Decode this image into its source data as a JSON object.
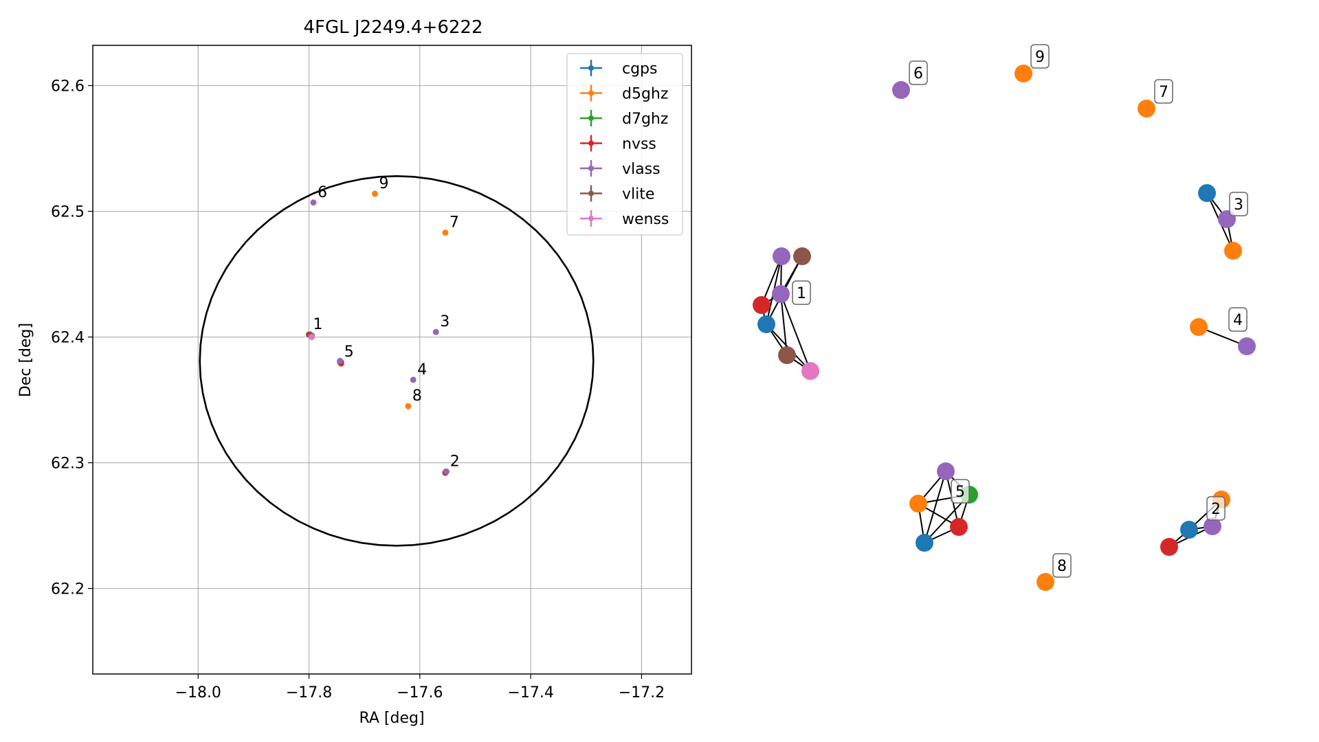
{
  "chart_data": [
    {
      "type": "scatter",
      "title": "4FGL J2249.4+6222",
      "xlabel": "RA [deg]",
      "ylabel": "Dec [deg]",
      "xlim": [
        -18.19,
        -17.11
      ],
      "ylim": [
        62.132,
        62.632
      ],
      "xticks": [
        -18.0,
        -17.8,
        -17.6,
        -17.4,
        -17.2
      ],
      "xtick_labels": [
        "−18.0",
        "−17.8",
        "−17.6",
        "−17.4",
        "−17.2"
      ],
      "yticks": [
        62.2,
        62.3,
        62.4,
        62.5,
        62.6
      ],
      "ytick_labels": [
        "62.2",
        "62.3",
        "62.4",
        "62.5",
        "62.6"
      ],
      "grid": true,
      "legend_position": "top-right",
      "series": [
        {
          "name": "cgps",
          "color": "#1f77b4",
          "points": [
            [
              -17.795,
              62.401
            ],
            [
              -17.744,
              62.38
            ],
            [
              -17.553,
              62.293
            ]
          ]
        },
        {
          "name": "d5ghz",
          "color": "#ff7f0e",
          "points": [
            [
              -17.681,
              62.514
            ],
            [
              -17.554,
              62.483
            ],
            [
              -17.621,
              62.345
            ],
            [
              -17.743,
              62.38
            ]
          ]
        },
        {
          "name": "d7ghz",
          "color": "#2ca02c",
          "points": [
            [
              -17.742,
              62.38
            ]
          ]
        },
        {
          "name": "nvss",
          "color": "#d62728",
          "points": [
            [
              -17.8,
              62.402
            ],
            [
              -17.742,
              62.379
            ],
            [
              -17.554,
              62.292
            ]
          ]
        },
        {
          "name": "vlass",
          "color": "#9467bd",
          "points": [
            [
              -17.792,
              62.507
            ],
            [
              -17.571,
              62.404
            ],
            [
              -17.612,
              62.366
            ],
            [
              -17.744,
              62.381
            ],
            [
              -17.552,
              62.293
            ],
            [
              -17.797,
              62.401
            ]
          ]
        },
        {
          "name": "vlite",
          "color": "#8c564b",
          "points": [
            [
              -17.798,
              62.402
            ]
          ]
        },
        {
          "name": "wenss",
          "color": "#e377c2",
          "points": [
            [
              -17.795,
              62.4
            ]
          ]
        }
      ],
      "labels": [
        {
          "text": "1",
          "x": -17.8,
          "y": 62.402
        },
        {
          "text": "2",
          "x": -17.553,
          "y": 62.293
        },
        {
          "text": "3",
          "x": -17.571,
          "y": 62.404
        },
        {
          "text": "4",
          "x": -17.612,
          "y": 62.366
        },
        {
          "text": "5",
          "x": -17.744,
          "y": 62.38
        },
        {
          "text": "6",
          "x": -17.792,
          "y": 62.507
        },
        {
          "text": "7",
          "x": -17.554,
          "y": 62.483
        },
        {
          "text": "8",
          "x": -17.621,
          "y": 62.345
        },
        {
          "text": "9",
          "x": -17.681,
          "y": 62.514
        }
      ],
      "circle": {
        "center": [
          -17.642,
          62.381
        ],
        "radius_ra": 0.355,
        "radius_dec": 0.147
      }
    },
    {
      "type": "network",
      "clusters": [
        {
          "label": "1",
          "nodes": [
            "vlass",
            "vlite",
            "vlass",
            "nvss",
            "cgps",
            "vlite",
            "wenss"
          ]
        },
        {
          "label": "2",
          "nodes": [
            "d5ghz",
            "vlass",
            "cgps",
            "nvss"
          ]
        },
        {
          "label": "3",
          "nodes": [
            "cgps",
            "vlass",
            "d5ghz"
          ]
        },
        {
          "label": "4",
          "nodes": [
            "d5ghz",
            "vlass"
          ]
        },
        {
          "label": "5",
          "nodes": [
            "vlass",
            "d7ghz",
            "d5ghz",
            "nvss",
            "cgps"
          ]
        },
        {
          "label": "6",
          "nodes": [
            "vlass"
          ]
        },
        {
          "label": "7",
          "nodes": [
            "d5ghz"
          ]
        },
        {
          "label": "8",
          "nodes": [
            "d5ghz"
          ]
        },
        {
          "label": "9",
          "nodes": [
            "d5ghz"
          ]
        }
      ]
    }
  ]
}
